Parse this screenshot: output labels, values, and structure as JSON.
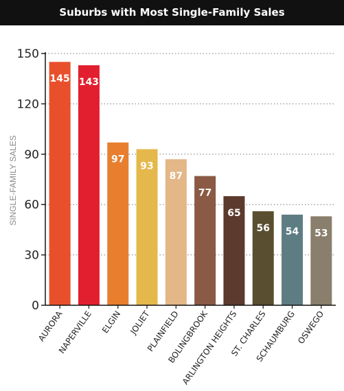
{
  "chart_data": {
    "type": "bar",
    "title": "Suburbs with Most Single-Family Sales",
    "xlabel": "",
    "ylabel": "SINGLE-FAMILY SALES",
    "ylim": [
      0,
      150
    ],
    "yticks": [
      0,
      30,
      60,
      90,
      120,
      150
    ],
    "grid": "horizontal dotted",
    "categories": [
      "AURORA",
      "NAPERVILLE",
      "ELGIN",
      "JOLIET",
      "PLAINFIELD",
      "BOLINGBROOK",
      "ARLINGTON HEIGHTS",
      "ST. CHARLES",
      "SCHAUMBURG",
      "OSWEGO"
    ],
    "values": [
      145,
      143,
      97,
      93,
      87,
      77,
      65,
      56,
      54,
      53
    ],
    "colors": [
      "#e8502c",
      "#e21f2e",
      "#e87f2e",
      "#e5b84c",
      "#e3b787",
      "#8a5a45",
      "#5c3a2e",
      "#5a4e30",
      "#5e7d83",
      "#8a7e6c"
    ]
  }
}
